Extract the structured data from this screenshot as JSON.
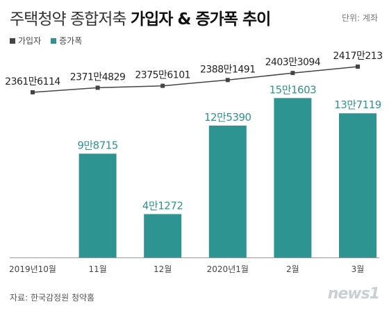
{
  "title_light": "주택청약 종합저축",
  "title_bold": "가입자 & 증가폭 추이",
  "unit": "단위: 계좌",
  "source": "자료: 한국감정원 청약홈",
  "logo": "news1",
  "colors": {
    "line": "#444444",
    "bar": "#2e9491",
    "axis": "#999999"
  },
  "chart_data": {
    "type": "bar",
    "title": "주택청약 종합저축 가입자 & 증가폭 추이",
    "categories": [
      "2019년10월",
      "11월",
      "12월",
      "2020년1월",
      "2월",
      "3월"
    ],
    "legend_position": "top-left",
    "series": [
      {
        "name": "가입자",
        "type": "line",
        "values": [
          23616114,
          23714829,
          23756101,
          23881491,
          24033094,
          24170213
        ],
        "labels": [
          "2361만6114",
          "2371만4829",
          "2375만6101",
          "2388만1491",
          "2403만3094",
          "2417만213"
        ]
      },
      {
        "name": "증가폭",
        "type": "bar",
        "values": [
          null,
          98715,
          41272,
          125390,
          151603,
          137119
        ],
        "labels": [
          "",
          "9만8715",
          "4만1272",
          "12만5390",
          "15만1603",
          "13만7119"
        ]
      }
    ]
  }
}
